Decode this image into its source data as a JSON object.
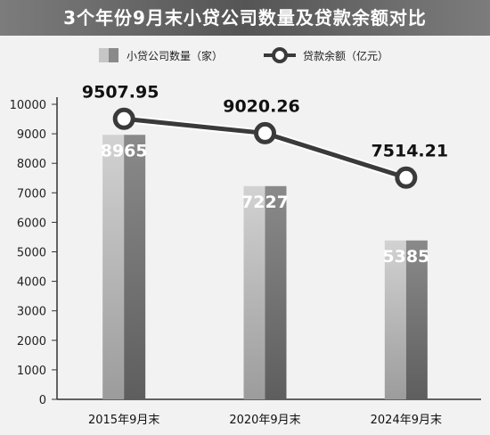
{
  "title": "3个年份9月末小贷公司数量及贷款余额对比",
  "legend": {
    "bar_label": "小贷公司数量（家）",
    "line_label": "贷款余额（亿元）"
  },
  "chart_data": {
    "type": "bar",
    "categories": [
      "2015年9月末",
      "2020年9月末",
      "2024年9月末"
    ],
    "series": [
      {
        "name": "小贷公司数量（家）",
        "type": "bar",
        "values": [
          8965,
          7227,
          5385
        ],
        "labels": [
          "8965",
          "7227",
          "5385"
        ]
      },
      {
        "name": "贷款余额（亿元）",
        "type": "line",
        "values": [
          9507.95,
          9020.26,
          7514.21
        ],
        "labels": [
          "9507.95",
          "9020.26",
          "7514.21"
        ]
      }
    ],
    "y_ticks": [
      "0",
      "1000",
      "2000",
      "3000",
      "4000",
      "5000",
      "6000",
      "7000",
      "8000",
      "9000",
      "10000"
    ],
    "ylim": [
      0,
      10000
    ],
    "grid": false,
    "legend_position": "top"
  },
  "colors": {
    "bar_light": "#bcbcbc",
    "bar_dark": "#7a7a7a",
    "line": "#3a3a3a",
    "title_band": "#666666"
  }
}
